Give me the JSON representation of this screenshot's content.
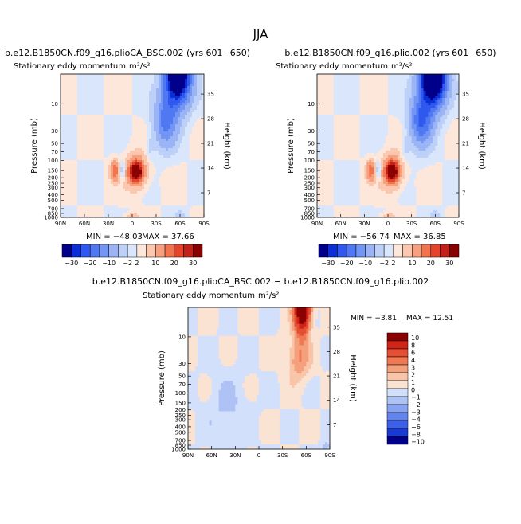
{
  "figure": {
    "title": "JJA",
    "diff_title": "b.e12.B1850CN.f09_g16.plioCA_BSC.002 − b.e12.B1850CN.f09_g16.plio.002"
  },
  "colors": {
    "main_scale": [
      "#00008b",
      "#0a2fd6",
      "#2f59ee",
      "#4f78f2",
      "#7396f4",
      "#9bb4f6",
      "#bcd0f8",
      "#d9e6fb",
      "#fde6da",
      "#fbc7ae",
      "#f7a07f",
      "#f2744f",
      "#e4452a",
      "#c0221a",
      "#8b0000"
    ],
    "diff_scale": [
      "#00008b",
      "#1a3ad6",
      "#3d60ea",
      "#6284ef",
      "#89a3f3",
      "#afc2f6",
      "#d2e0fb",
      "#fbe3d3",
      "#f9c5a9",
      "#f5a07c",
      "#ef7953",
      "#e44e32",
      "#cf2417",
      "#8b0000"
    ]
  },
  "chart_data": [
    {
      "type": "heatmap",
      "run_title": "b.e12.B1850CN.f09_g16.plioCA_BSC.002 (yrs 601−650)",
      "field": "Stationary eddy momentum",
      "units": "m²/s²",
      "xlabel": "",
      "ylabel": "Pressure (mb)",
      "ylabel_right": "Height (km)",
      "x_ticks": [
        "90N",
        "60N",
        "30N",
        "0",
        "30S",
        "60S",
        "90S"
      ],
      "x_values": [
        -90,
        -60,
        -30,
        0,
        30,
        60,
        90
      ],
      "y_ticks": [
        "10",
        "30",
        "50",
        "70",
        "100",
        "150",
        "200",
        "250",
        "300",
        "400",
        "500",
        "700",
        "850",
        "1000"
      ],
      "y_values": [
        10,
        30,
        50,
        70,
        100,
        150,
        200,
        250,
        300,
        400,
        500,
        700,
        850,
        1000
      ],
      "y_range_mb": [
        3,
        1000
      ],
      "height_ticks": [
        "35",
        "28",
        "21",
        "14",
        "7"
      ],
      "height_values": [
        35,
        28,
        21,
        14,
        7
      ],
      "min_label": "MIN = −48.03",
      "max_label": "MAX =  37.66",
      "min": -48.03,
      "max": 37.66,
      "features": [
        {
          "lat": 55,
          "p": 4,
          "value": -45,
          "desc": "strong negative core stratosphere SH"
        },
        {
          "lat": 5,
          "p": 150,
          "value": 35,
          "desc": "positive upper-tropospheric max"
        },
        {
          "lat": -22,
          "p": 150,
          "value": 15,
          "desc": "positive NH subtropics"
        },
        {
          "lat": -12,
          "p": 150,
          "value": -6,
          "desc": "negative lobe"
        }
      ]
    },
    {
      "type": "heatmap",
      "run_title": "b.e12.B1850CN.f09_g16.plio.002 (yrs 601−650)",
      "field": "Stationary eddy momentum",
      "units": "m²/s²",
      "xlabel": "",
      "ylabel": "Pressure (mb)",
      "ylabel_right": "Height (km)",
      "x_ticks": [
        "90N",
        "60N",
        "30N",
        "0",
        "30S",
        "60S",
        "90S"
      ],
      "x_values": [
        -90,
        -60,
        -30,
        0,
        30,
        60,
        90
      ],
      "y_ticks": [
        "10",
        "30",
        "50",
        "70",
        "100",
        "150",
        "200",
        "250",
        "300",
        "400",
        "500",
        "700",
        "850",
        "1000"
      ],
      "y_values": [
        10,
        30,
        50,
        70,
        100,
        150,
        200,
        250,
        300,
        400,
        500,
        700,
        850,
        1000
      ],
      "y_range_mb": [
        3,
        1000
      ],
      "height_ticks": [
        "35",
        "28",
        "21",
        "14",
        "7"
      ],
      "height_values": [
        35,
        28,
        21,
        14,
        7
      ],
      "min_label": "MIN = −56.74",
      "max_label": "MAX =  36.85",
      "min": -56.74,
      "max": 36.85,
      "features": [
        {
          "lat": 55,
          "p": 4,
          "value": -55,
          "desc": "strong negative core stratosphere SH"
        },
        {
          "lat": 5,
          "p": 150,
          "value": 35,
          "desc": "positive upper-tropospheric max"
        },
        {
          "lat": -22,
          "p": 150,
          "value": 15,
          "desc": "positive NH subtropics"
        },
        {
          "lat": -12,
          "p": 150,
          "value": -6,
          "desc": "negative lobe"
        }
      ]
    },
    {
      "type": "heatmap",
      "run_title": "",
      "field": "Stationary eddy momentum",
      "units": "m²/s²",
      "xlabel": "",
      "ylabel": "Pressure (mb)",
      "ylabel_right": "Height (km)",
      "x_ticks": [
        "90N",
        "60N",
        "30N",
        "0",
        "30S",
        "60S",
        "90S"
      ],
      "x_values": [
        -90,
        -60,
        -30,
        0,
        30,
        60,
        90
      ],
      "y_ticks": [
        "10",
        "30",
        "50",
        "70",
        "100",
        "150",
        "200",
        "250",
        "300",
        "400",
        "500",
        "700",
        "850",
        "1000"
      ],
      "y_values": [
        10,
        30,
        50,
        70,
        100,
        150,
        200,
        250,
        300,
        400,
        500,
        700,
        850,
        1000
      ],
      "y_range_mb": [
        3,
        1000
      ],
      "height_ticks": [
        "35",
        "28",
        "21",
        "14",
        "7"
      ],
      "height_values": [
        35,
        28,
        21,
        14,
        7
      ],
      "min_label": "MIN =  −3.81",
      "max_label": "MAX =  12.51",
      "min": -3.81,
      "max": 12.51,
      "features": [
        {
          "lat": 55,
          "p": 4,
          "value": 12,
          "desc": "positive difference core SH stratosphere"
        }
      ]
    }
  ],
  "colorbar_main": {
    "orientation": "horizontal",
    "labels": [
      "−30",
      "−20",
      "−10",
      "−2",
      "2",
      "10",
      "20",
      "30"
    ],
    "levels": [
      -30,
      -25,
      -20,
      -15,
      -10,
      -5,
      -2,
      0,
      2,
      5,
      10,
      15,
      20,
      25,
      30
    ]
  },
  "colorbar_diff": {
    "orientation": "vertical",
    "labels": [
      "10",
      "8",
      "6",
      "4",
      "3",
      "2",
      "1",
      "0",
      "−1",
      "−2",
      "−3",
      "−4",
      "−6",
      "−8",
      "−10"
    ],
    "levels": [
      10,
      8,
      6,
      4,
      3,
      2,
      1,
      0,
      -1,
      -2,
      -3,
      -4,
      -6,
      -8,
      -10
    ]
  }
}
